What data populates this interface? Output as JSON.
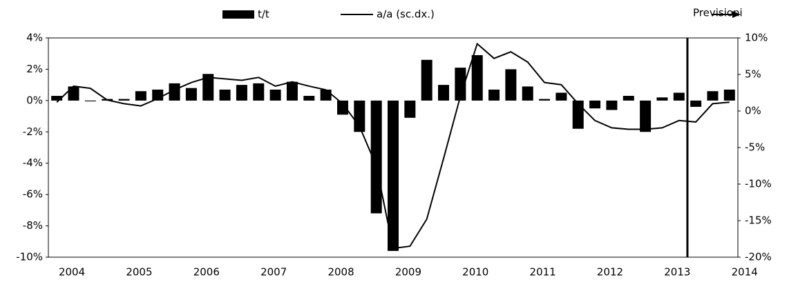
{
  "chart_data": {
    "type": "bar_line",
    "categories": [
      "2004",
      null,
      null,
      null,
      "2005",
      null,
      null,
      null,
      "2006",
      null,
      null,
      null,
      "2007",
      null,
      null,
      null,
      "2008",
      null,
      null,
      null,
      "2009",
      null,
      null,
      null,
      "2010",
      null,
      null,
      null,
      "2011",
      null,
      null,
      null,
      "2012",
      null,
      null,
      null,
      "2013",
      null,
      null,
      null,
      "2014"
    ],
    "series": [
      {
        "name": "t/t",
        "type": "bar",
        "color": "#000000",
        "values": [
          0.3,
          0.9,
          -0.05,
          0.1,
          0.1,
          0.6,
          0.7,
          1.1,
          0.8,
          1.7,
          0.7,
          1.0,
          1.1,
          0.7,
          1.2,
          0.3,
          0.7,
          -0.9,
          -2.0,
          -7.2,
          -9.6,
          -1.1,
          2.6,
          1.0,
          2.1,
          2.9,
          0.7,
          2.0,
          0.9,
          0.1,
          0.5,
          -1.8,
          -0.5,
          -0.6,
          0.3,
          -2.0,
          0.2,
          0.5,
          -0.4,
          0.6,
          0.7
        ]
      },
      {
        "name": "a/a (sc.dx.)",
        "type": "line",
        "axis": "y2",
        "color": "#000000",
        "values": [
          1.2,
          3.4,
          3.1,
          1.5,
          1.0,
          0.7,
          1.7,
          2.9,
          3.9,
          4.6,
          4.4,
          4.2,
          4.6,
          3.4,
          4.0,
          3.4,
          2.9,
          1.0,
          -2.1,
          -7.5,
          -18.8,
          -18.5,
          -14.8,
          -6.5,
          2.0,
          9.2,
          7.2,
          8.1,
          6.7,
          3.9,
          3.6,
          1.0,
          -1.3,
          -2.3,
          -2.5,
          -2.5,
          -2.3,
          -1.3,
          -1.5,
          1.0,
          1.2
        ]
      }
    ],
    "annotation": "Previsioni",
    "ylim": [
      -10,
      4
    ],
    "yticks": [
      {
        "value": -10,
        "label": "-10%"
      },
      {
        "value": -8,
        "label": "-8%"
      },
      {
        "value": -6,
        "label": "-6%"
      },
      {
        "value": -4,
        "label": "-4%"
      },
      {
        "value": -2,
        "label": "-2%"
      },
      {
        "value": 0,
        "label": "0%"
      },
      {
        "value": 2,
        "label": "2%"
      },
      {
        "value": 4,
        "label": "4%"
      }
    ],
    "y2lim": [
      -20,
      10
    ],
    "y2ticks": [
      {
        "value": -20,
        "label": "-20%"
      },
      {
        "value": -15,
        "label": "-15%"
      },
      {
        "value": -10,
        "label": "-10%"
      },
      {
        "value": -5,
        "label": "-5%"
      },
      {
        "value": 0,
        "label": "0%"
      },
      {
        "value": 5,
        "label": "5%"
      },
      {
        "value": 10,
        "label": "10%"
      }
    ]
  }
}
